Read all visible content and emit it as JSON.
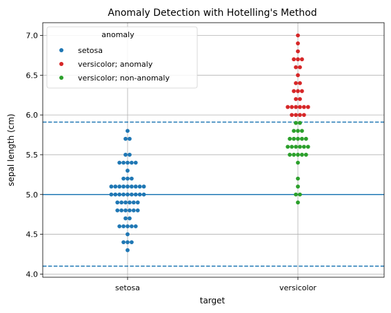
{
  "chart_data": {
    "type": "scatter",
    "subtype": "swarm",
    "title": "Anomaly Detection with Hotelling's Method",
    "xlabel": "target",
    "ylabel": "sepal length (cm)",
    "categories": [
      "setosa",
      "versicolor"
    ],
    "ylim": [
      3.96,
      7.16
    ],
    "yticks": [
      4.0,
      4.5,
      5.0,
      5.5,
      6.0,
      6.5,
      7.0
    ],
    "ytick_labels": [
      "4.0",
      "4.5",
      "5.0",
      "5.5",
      "6.0",
      "6.5",
      "7.0"
    ],
    "grid": true,
    "legend": {
      "title": "anomaly",
      "position": "top-left"
    },
    "reference_lines": [
      {
        "y": 5.0,
        "style": "solid",
        "color": "#1f77b4"
      },
      {
        "y": 5.91,
        "style": "dashed",
        "color": "#1f77b4"
      },
      {
        "y": 4.1,
        "style": "dashed",
        "color": "#1f77b4"
      }
    ],
    "series": [
      {
        "name": "setosa",
        "category": "setosa",
        "color": "#1f77b4",
        "points": [
          {
            "y": 5.8,
            "count": 1
          },
          {
            "y": 5.7,
            "count": 2
          },
          {
            "y": 5.5,
            "count": 2
          },
          {
            "y": 5.4,
            "count": 5
          },
          {
            "y": 5.3,
            "count": 1
          },
          {
            "y": 5.2,
            "count": 3
          },
          {
            "y": 5.1,
            "count": 9
          },
          {
            "y": 5.0,
            "count": 9
          },
          {
            "y": 4.9,
            "count": 6
          },
          {
            "y": 4.8,
            "count": 6
          },
          {
            "y": 4.7,
            "count": 2
          },
          {
            "y": 4.6,
            "count": 5
          },
          {
            "y": 4.5,
            "count": 1
          },
          {
            "y": 4.4,
            "count": 3
          },
          {
            "y": 4.3,
            "count": 1
          }
        ]
      },
      {
        "name": "versicolor; anomaly",
        "category": "versicolor",
        "color": "#d62728",
        "points": [
          {
            "y": 7.0,
            "count": 1
          },
          {
            "y": 6.9,
            "count": 1
          },
          {
            "y": 6.8,
            "count": 1
          },
          {
            "y": 6.7,
            "count": 3
          },
          {
            "y": 6.6,
            "count": 2
          },
          {
            "y": 6.5,
            "count": 1
          },
          {
            "y": 6.4,
            "count": 2
          },
          {
            "y": 6.3,
            "count": 3
          },
          {
            "y": 6.2,
            "count": 2
          },
          {
            "y": 6.1,
            "count": 6
          },
          {
            "y": 6.0,
            "count": 4
          }
        ]
      },
      {
        "name": "versicolor; non-anomaly",
        "category": "versicolor",
        "color": "#2ca02c",
        "points": [
          {
            "y": 5.9,
            "count": 2
          },
          {
            "y": 5.8,
            "count": 3
          },
          {
            "y": 5.7,
            "count": 5
          },
          {
            "y": 5.6,
            "count": 6
          },
          {
            "y": 5.5,
            "count": 5
          },
          {
            "y": 5.4,
            "count": 1
          },
          {
            "y": 5.2,
            "count": 1
          },
          {
            "y": 5.1,
            "count": 1
          },
          {
            "y": 5.0,
            "count": 2
          },
          {
            "y": 4.9,
            "count": 1
          }
        ]
      }
    ]
  }
}
